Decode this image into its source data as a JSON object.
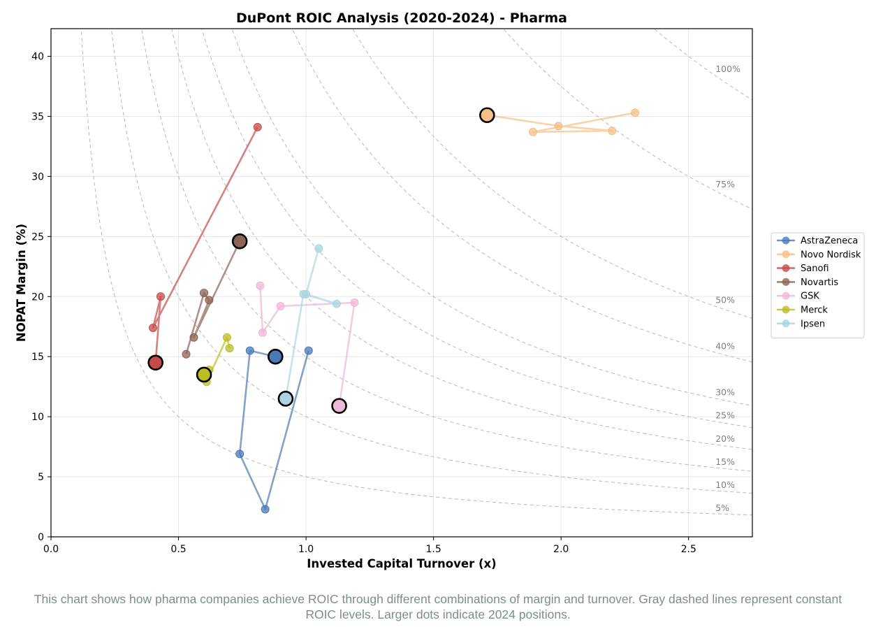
{
  "caption": "This chart shows how pharma companies achieve ROIC through different combinations of margin and turnover. Gray dashed lines represent constant ROIC levels. Larger dots indicate 2024 positions.",
  "chart_data": {
    "type": "line",
    "title": "DuPont ROIC Analysis (2020-2024) - Pharma",
    "xlabel": "Invested Capital Turnover (x)",
    "ylabel": "NOPAT Margin (%)",
    "xlim": [
      0,
      2.75
    ],
    "ylim": [
      0,
      42.3
    ],
    "xticks": [
      0.0,
      0.5,
      1.0,
      1.5,
      2.0,
      2.5
    ],
    "xtick_labels": [
      "0.0",
      "0.5",
      "1.0",
      "1.5",
      "2.0",
      "2.5"
    ],
    "yticks": [
      0,
      5,
      10,
      15,
      20,
      25,
      30,
      35,
      40
    ],
    "ytick_labels": [
      "0",
      "5",
      "10",
      "15",
      "20",
      "25",
      "30",
      "35",
      "40"
    ],
    "grid": true,
    "legend_position": "outside-right",
    "iso_roic": [
      {
        "roic": 5,
        "label": "5%"
      },
      {
        "roic": 10,
        "label": "10%"
      },
      {
        "roic": 15,
        "label": "15%"
      },
      {
        "roic": 20,
        "label": "20%"
      },
      {
        "roic": 25,
        "label": "25%"
      },
      {
        "roic": 30,
        "label": "30%"
      },
      {
        "roic": 40,
        "label": "40%"
      },
      {
        "roic": 50,
        "label": "50%"
      },
      {
        "roic": 75,
        "label": "75%"
      },
      {
        "roic": 100,
        "label": "100%"
      }
    ],
    "series": [
      {
        "name": "AstraZeneca",
        "color": "#4a7ab5",
        "points": [
          [
            1.01,
            15.5
          ],
          [
            0.84,
            2.3
          ],
          [
            0.74,
            6.9
          ],
          [
            0.78,
            15.5
          ],
          [
            0.88,
            15.0
          ]
        ]
      },
      {
        "name": "Novo Nordisk",
        "color": "#f5bf85",
        "points": [
          [
            2.29,
            35.3
          ],
          [
            1.89,
            33.7
          ],
          [
            2.2,
            33.8
          ],
          [
            1.99,
            34.2
          ],
          [
            1.71,
            35.1
          ]
        ]
      },
      {
        "name": "Sanofi",
        "color": "#c64a4a",
        "points": [
          [
            0.81,
            34.1
          ],
          [
            0.4,
            17.4
          ],
          [
            0.43,
            20.0
          ],
          [
            0.41,
            14.5
          ],
          [
            0.41,
            14.5
          ]
        ]
      },
      {
        "name": "Novartis",
        "color": "#8c6357",
        "points": [
          [
            0.53,
            15.2
          ],
          [
            0.6,
            20.3
          ],
          [
            0.62,
            19.7
          ],
          [
            0.56,
            16.6
          ],
          [
            0.74,
            24.6
          ]
        ]
      },
      {
        "name": "GSK",
        "color": "#f0b7d6",
        "points": [
          [
            0.82,
            20.9
          ],
          [
            0.83,
            17.0
          ],
          [
            0.9,
            19.2
          ],
          [
            1.19,
            19.5
          ],
          [
            1.13,
            10.9
          ]
        ]
      },
      {
        "name": "Merck",
        "color": "#bcbd22",
        "points": [
          [
            0.7,
            15.7
          ],
          [
            0.69,
            16.6
          ],
          [
            0.61,
            12.9
          ],
          [
            0.62,
            13.9
          ],
          [
            0.6,
            13.5
          ]
        ]
      },
      {
        "name": "Ipsen",
        "color": "#a9d5e0",
        "points": [
          [
            1.05,
            24.0
          ],
          [
            1.0,
            20.2
          ],
          [
            1.12,
            19.4
          ],
          [
            0.99,
            20.2
          ],
          [
            0.92,
            11.5
          ]
        ]
      }
    ]
  }
}
